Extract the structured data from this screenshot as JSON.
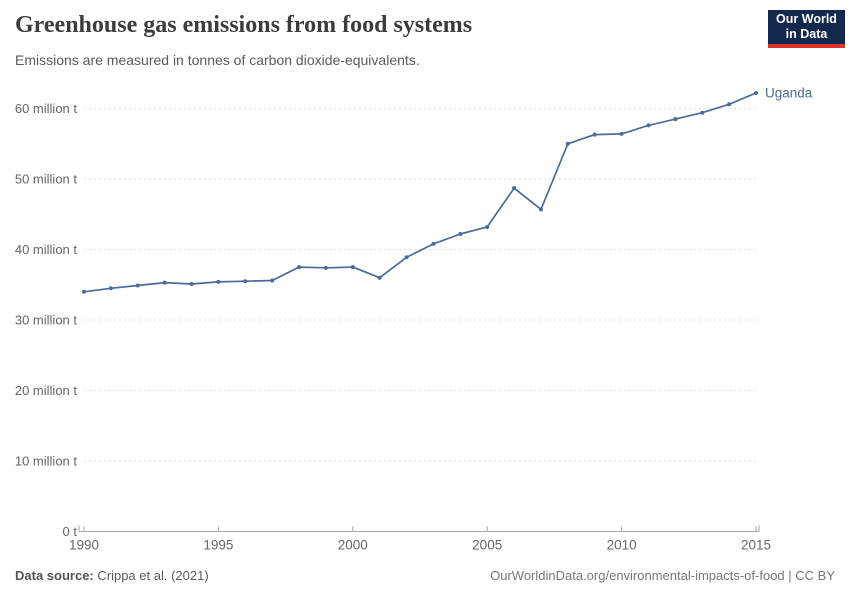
{
  "chart_data": {
    "type": "line",
    "title": "Greenhouse gas emissions from food systems",
    "subtitle": "Emissions are measured in tonnes of carbon dioxide-equivalents.",
    "entity_label": "Uganda",
    "unit": "million tonnes CO2-equivalents",
    "xlim": [
      1990,
      2015
    ],
    "ylim": [
      0,
      60
    ],
    "grid": "horizontal-dashed",
    "legend_position": "end-of-line",
    "x_ticks": [
      1990,
      1995,
      2000,
      2005,
      2010,
      2015
    ],
    "y_ticks": [
      {
        "value": 0,
        "label": "0 t"
      },
      {
        "value": 10,
        "label": "10 million t"
      },
      {
        "value": 20,
        "label": "20 million t"
      },
      {
        "value": 30,
        "label": "30 million t"
      },
      {
        "value": 40,
        "label": "40 million t"
      },
      {
        "value": 50,
        "label": "50 million t"
      },
      {
        "value": 60,
        "label": "60 million t"
      }
    ],
    "x": [
      1990,
      1991,
      1992,
      1993,
      1994,
      1995,
      1996,
      1997,
      1998,
      1999,
      2000,
      2001,
      2002,
      2003,
      2004,
      2005,
      2006,
      2007,
      2008,
      2009,
      2010,
      2011,
      2012,
      2013,
      2014,
      2015
    ],
    "series": [
      {
        "name": "Uganda",
        "color": "#4c6a9c",
        "values": [
          34.0,
          34.5,
          34.9,
          35.3,
          35.1,
          35.4,
          35.5,
          35.6,
          37.5,
          37.4,
          37.5,
          36.0,
          38.9,
          40.8,
          42.2,
          43.2,
          48.7,
          45.7,
          55.0,
          56.3,
          56.4,
          57.6,
          58.5,
          59.4,
          60.6,
          62.2
        ]
      }
    ],
    "colors": {
      "line": "#4c6a9c",
      "grid": "#dddddd",
      "axis": "#a6a6a6",
      "tick_text": "#666666"
    }
  },
  "header": {
    "logo": {
      "line1": "Our World",
      "line2": "in Data"
    }
  },
  "footer": {
    "source_label": "Data source:",
    "source_value": " Crippa et al. (2021)",
    "credit": "OurWorldinData.org/environmental-impacts-of-food | CC BY"
  }
}
